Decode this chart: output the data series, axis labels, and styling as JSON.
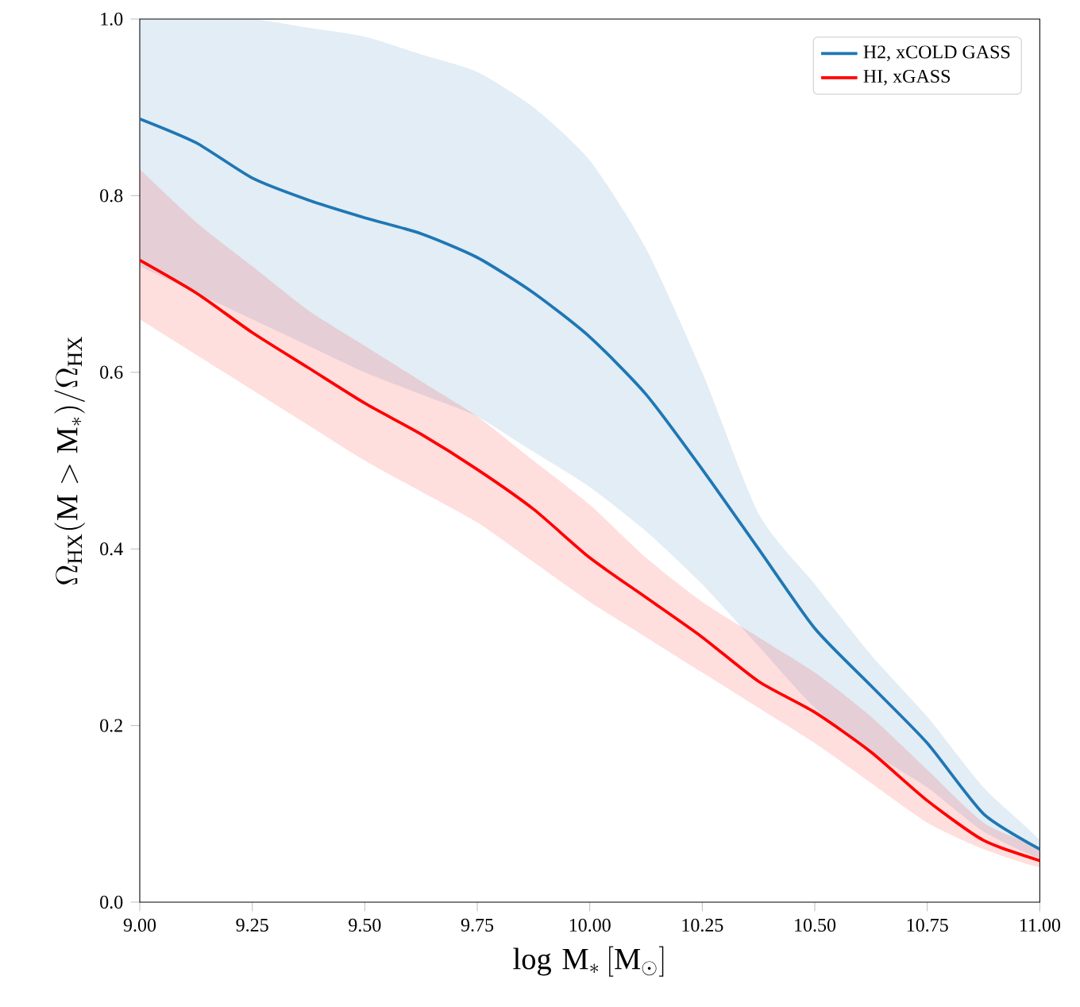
{
  "chart_data": {
    "type": "line",
    "xlabel": "\\log\\,\\mathrm{M}_*\\,[\\mathrm{M}_\\odot]",
    "ylabel": "\\Omega_{\\mathrm{HX}}(\\mathrm{M}>\\mathrm{M}_*)/\\Omega_{\\mathrm{HX}}",
    "legend": "top right",
    "xlim": [
      9,
      11
    ],
    "ylim": [
      0,
      1
    ],
    "xticks": [
      {
        "value": 9,
        "label": "9.00"
      },
      {
        "value": 9.25,
        "label": "9.25"
      },
      {
        "value": 9.5,
        "label": "9.50"
      },
      {
        "value": 9.75,
        "label": "9.75"
      },
      {
        "value": 10,
        "label": "10.00"
      },
      {
        "value": 10.25,
        "label": "10.25"
      },
      {
        "value": 10.5,
        "label": "10.50"
      },
      {
        "value": 10.75,
        "label": "10.75"
      },
      {
        "value": 11,
        "label": "11.00"
      }
    ],
    "yticks": [
      {
        "value": 0,
        "label": "0.0"
      },
      {
        "value": 0.2,
        "label": "0.2"
      },
      {
        "value": 0.4,
        "label": "0.4"
      },
      {
        "value": 0.6,
        "label": "0.6"
      },
      {
        "value": 0.8,
        "label": "0.8"
      },
      {
        "value": 1,
        "label": "1.0"
      }
    ],
    "series": [
      {
        "name": "H2, xCOLD GASS",
        "color": "#1f77b4",
        "x": [
          9,
          9.125,
          9.25,
          9.375,
          9.5,
          9.625,
          9.75,
          9.875,
          10,
          10.125,
          10.25,
          10.375,
          10.5,
          10.625,
          10.75,
          10.875,
          11
        ],
        "values": [
          0.887,
          0.86,
          0.82,
          0.795,
          0.775,
          0.757,
          0.73,
          0.69,
          0.64,
          0.575,
          0.49,
          0.4,
          0.31,
          0.245,
          0.18,
          0.1,
          0.06
        ],
        "lower": [
          0.72,
          0.69,
          0.66,
          0.63,
          0.6,
          0.575,
          0.55,
          0.51,
          0.47,
          0.42,
          0.36,
          0.29,
          0.22,
          0.17,
          0.13,
          0.08,
          0.05
        ],
        "upper": [
          1,
          1,
          1,
          0.99,
          0.98,
          0.96,
          0.94,
          0.9,
          0.84,
          0.74,
          0.6,
          0.44,
          0.36,
          0.28,
          0.21,
          0.13,
          0.07
        ]
      },
      {
        "name": "HI, xGASS",
        "color": "#ff0000",
        "x": [
          9,
          9.125,
          9.25,
          9.375,
          9.5,
          9.625,
          9.75,
          9.875,
          10,
          10.125,
          10.25,
          10.375,
          10.5,
          10.625,
          10.75,
          10.875,
          11
        ],
        "values": [
          0.727,
          0.69,
          0.645,
          0.605,
          0.565,
          0.53,
          0.49,
          0.445,
          0.39,
          0.345,
          0.3,
          0.25,
          0.215,
          0.17,
          0.115,
          0.07,
          0.047
        ],
        "lower": [
          0.66,
          0.62,
          0.58,
          0.54,
          0.5,
          0.465,
          0.43,
          0.385,
          0.34,
          0.3,
          0.26,
          0.22,
          0.18,
          0.135,
          0.09,
          0.06,
          0.04
        ],
        "upper": [
          0.83,
          0.77,
          0.72,
          0.67,
          0.63,
          0.59,
          0.55,
          0.5,
          0.45,
          0.39,
          0.34,
          0.3,
          0.26,
          0.21,
          0.15,
          0.09,
          0.06
        ]
      }
    ]
  }
}
